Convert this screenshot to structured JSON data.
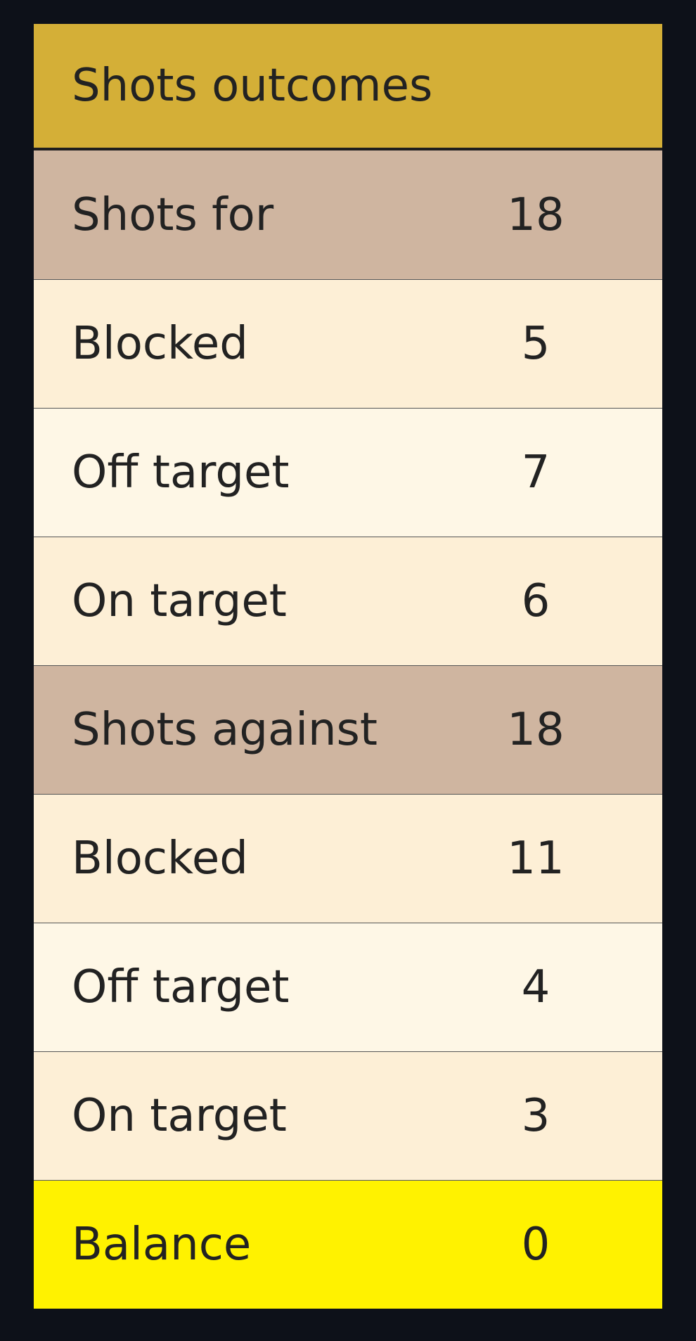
{
  "title": "Shots outcomes",
  "colors": {
    "background": "#0d1119",
    "header": "#d4af37",
    "section": "#cfb5a0",
    "row_alt_a": "#fdefd6",
    "row_alt_b": "#fef7e6",
    "balance": "#fff200",
    "text": "#222222"
  },
  "rows": [
    {
      "label": "Shots for",
      "value": "18",
      "kind": "section"
    },
    {
      "label": "Blocked",
      "value": "5",
      "kind": "a"
    },
    {
      "label": "Off target",
      "value": "7",
      "kind": "b"
    },
    {
      "label": "On target",
      "value": "6",
      "kind": "a"
    },
    {
      "label": "Shots against",
      "value": "18",
      "kind": "section"
    },
    {
      "label": "Blocked",
      "value": "11",
      "kind": "a"
    },
    {
      "label": "Off target",
      "value": "4",
      "kind": "b"
    },
    {
      "label": "On target",
      "value": "3",
      "kind": "a"
    },
    {
      "label": "Balance",
      "value": "0",
      "kind": "balance"
    }
  ]
}
